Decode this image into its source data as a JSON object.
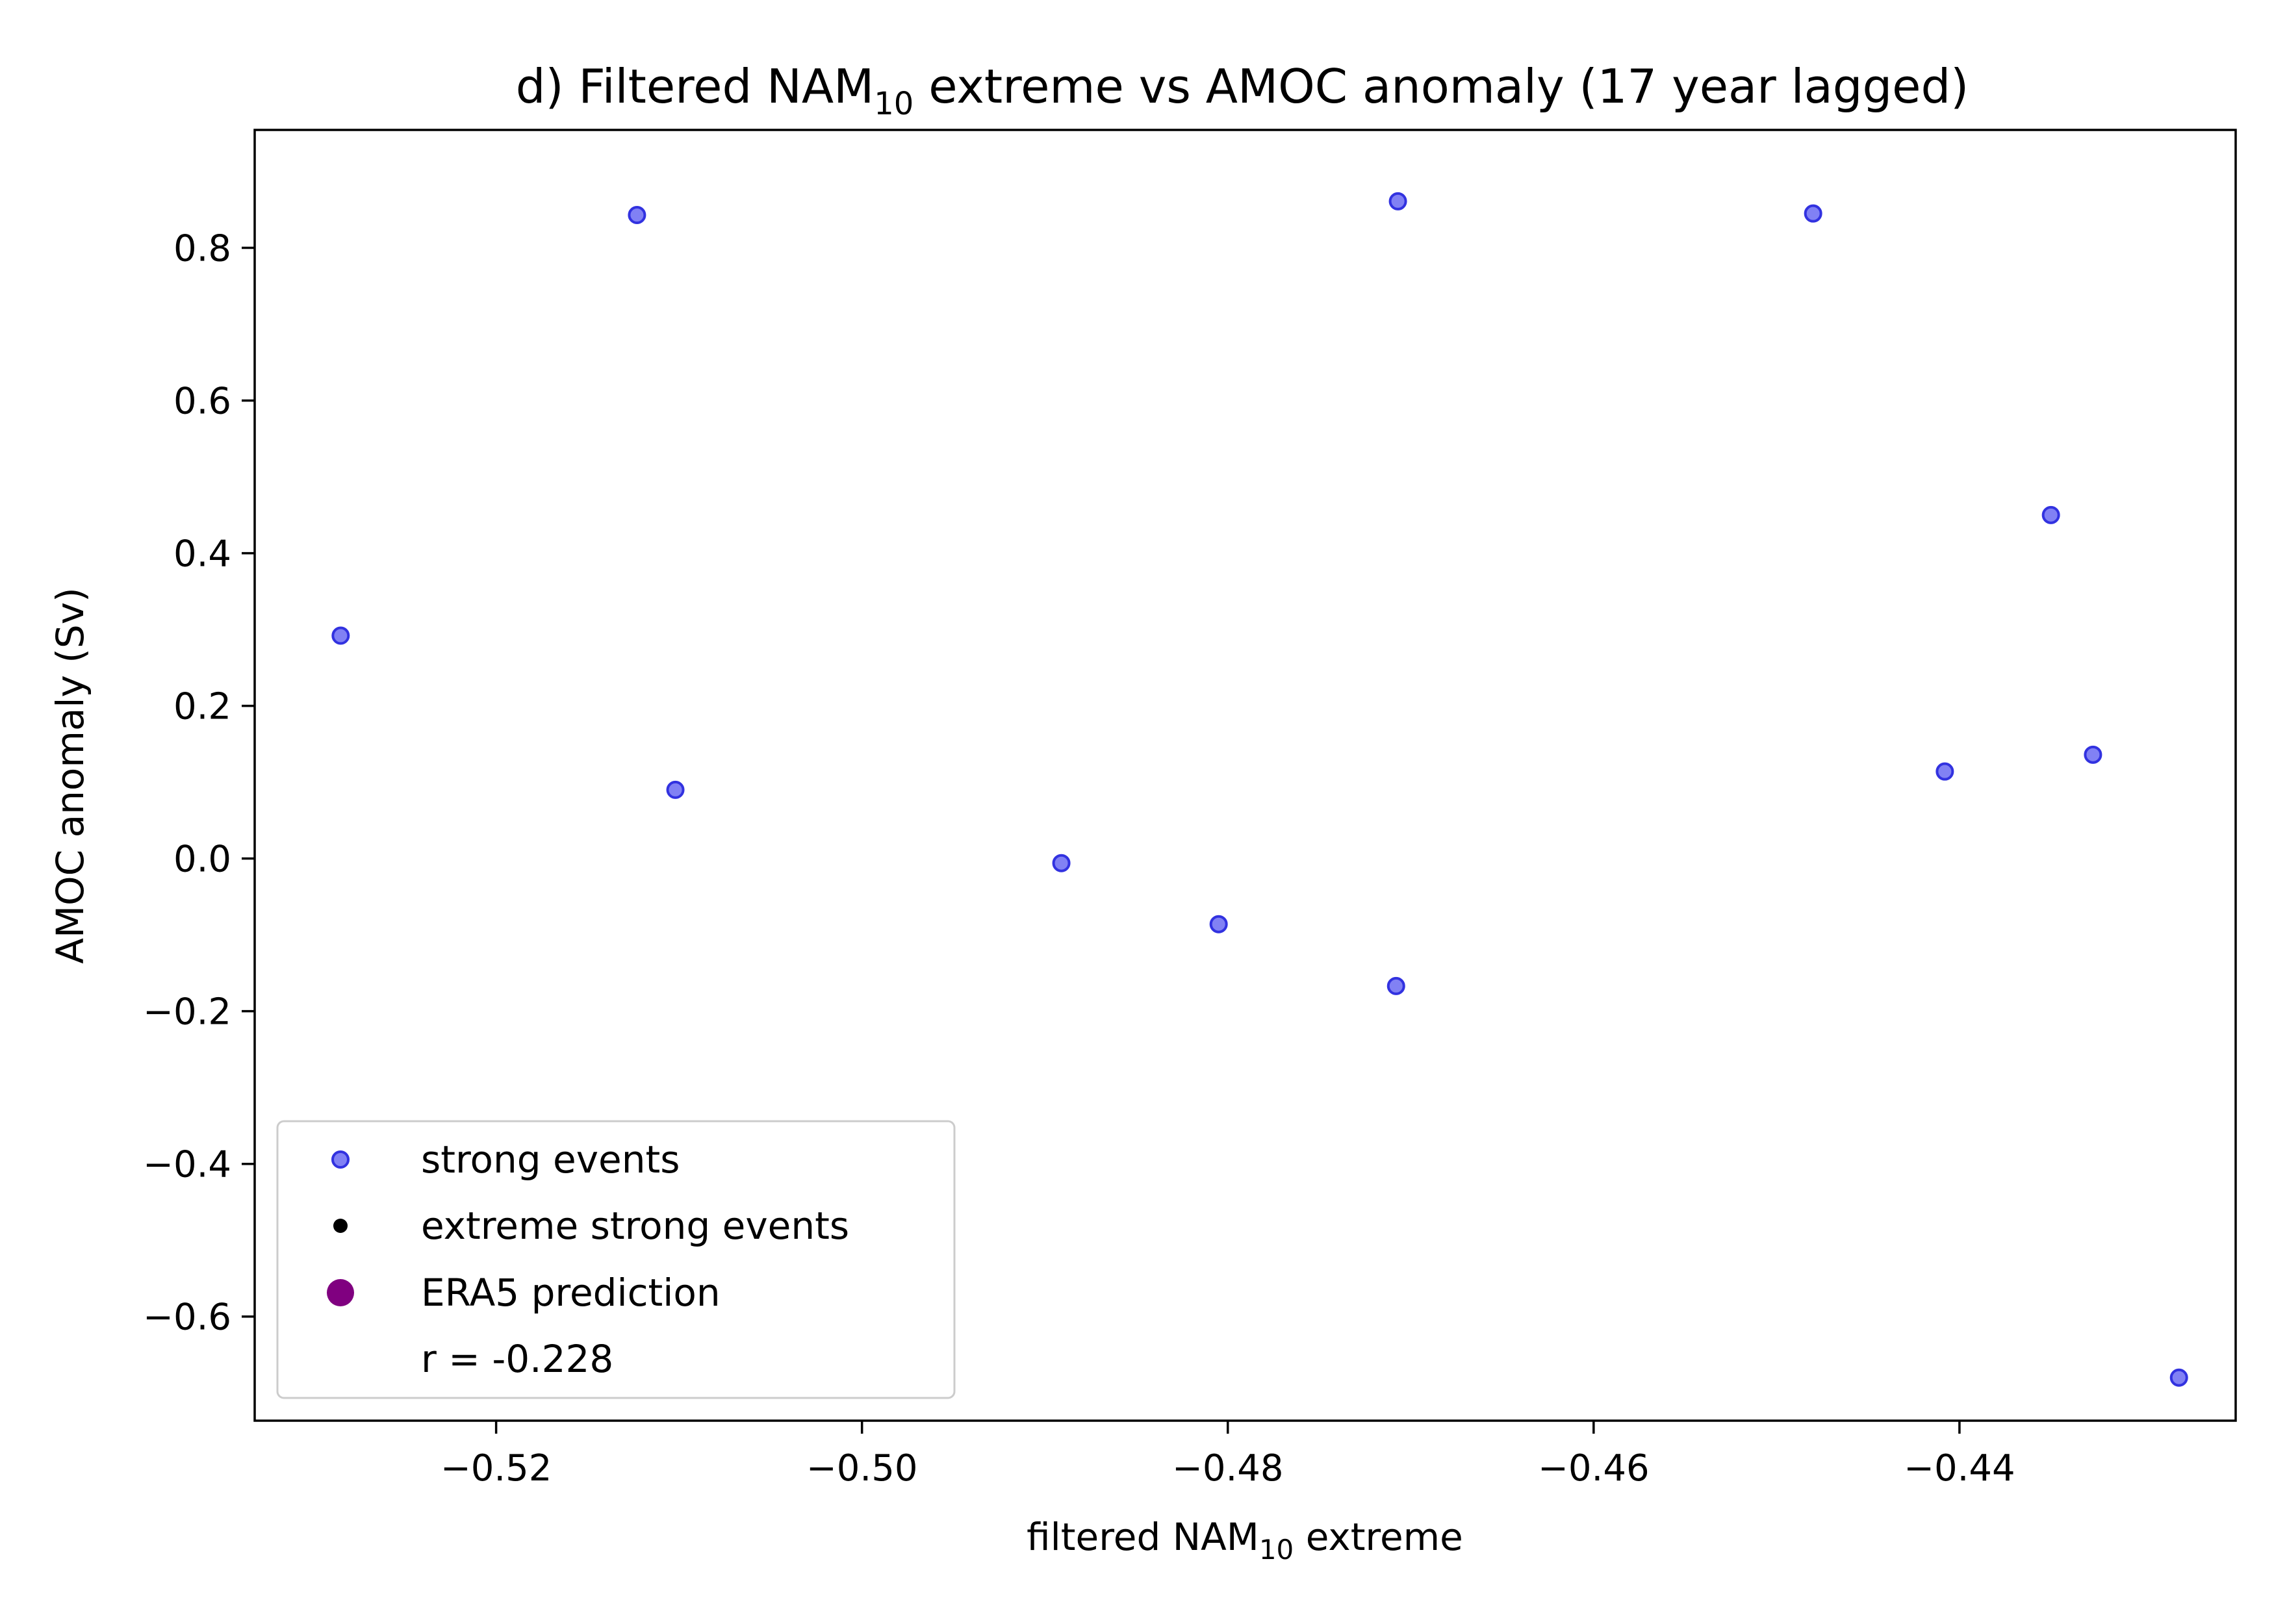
{
  "chart_data": {
    "type": "scatter",
    "title": {
      "prefix": "d) Filtered NAM",
      "subscript": "10",
      "suffix": " extreme vs AMOC anomaly (17 year lagged)"
    },
    "xlabel": {
      "prefix": "filtered NAM",
      "subscript": "10",
      "suffix": " extreme"
    },
    "ylabel": "AMOC anomaly (Sv)",
    "xlim": [
      -0.5332,
      -0.4249
    ],
    "ylim": [
      -0.7364,
      0.9545
    ],
    "xticks": [
      -0.52,
      -0.5,
      -0.48,
      -0.46,
      -0.44
    ],
    "xtick_labels": [
      "−0.52",
      "−0.50",
      "−0.48",
      "−0.46",
      "−0.44"
    ],
    "yticks": [
      -0.6,
      -0.4,
      -0.2,
      0.0,
      0.2,
      0.4,
      0.6,
      0.8
    ],
    "ytick_labels": [
      "−0.6",
      "−0.4",
      "−0.2",
      "0.0",
      "0.2",
      "0.4",
      "0.6",
      "0.8"
    ],
    "grid": false,
    "legend_position": "lower-left",
    "series": [
      {
        "name": "strong events",
        "color": "#4c4cf0",
        "edge_color": "#3232e0",
        "x": [
          -0.5285,
          -0.5123,
          -0.5102,
          -0.4891,
          -0.4805,
          -0.4708,
          -0.4707,
          -0.448,
          -0.4408,
          -0.435,
          -0.4327,
          -0.428
        ],
        "y": [
          0.292,
          0.843,
          0.09,
          -0.006,
          -0.086,
          -0.167,
          0.861,
          0.845,
          0.114,
          0.45,
          0.136,
          -0.68
        ]
      },
      {
        "name": "extreme strong events",
        "color": "#000000",
        "x": [],
        "y": []
      },
      {
        "name": "ERA5 prediction",
        "color": "#800080",
        "x": [],
        "y": []
      }
    ],
    "legend_extra": "r = -0.228"
  }
}
